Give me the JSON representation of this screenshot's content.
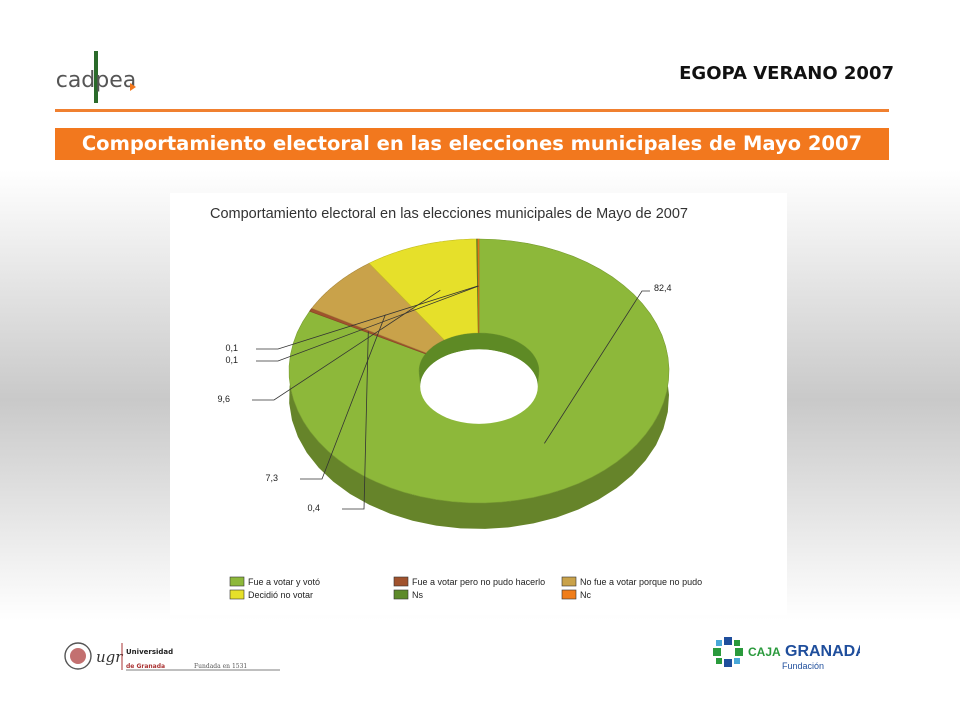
{
  "header": {
    "logo_left_text": "cadpea",
    "survey_label": "EGOPA VERANO 2007"
  },
  "banner": {
    "title": "Comportamiento electoral en las elecciones municipales de Mayo 2007"
  },
  "chart_data": {
    "type": "pie",
    "style": "3d-donut",
    "title": "Comportamiento electoral en las elecciones municipales de Mayo de 2007",
    "slices": [
      {
        "label": "Fue a votar y votó",
        "value": 82.4,
        "value_label": "82,4",
        "color": "#8db83a"
      },
      {
        "label": "Fue a votar pero no pudo hacerlo",
        "value": 0.4,
        "value_label": "0,4",
        "color": "#a0522d"
      },
      {
        "label": "No fue a votar porque no pudo",
        "value": 7.3,
        "value_label": "7,3",
        "color": "#c9a24a"
      },
      {
        "label": "Decidió no votar",
        "value": 9.6,
        "value_label": "9,6",
        "color": "#e6e02a"
      },
      {
        "label": "Ns",
        "value": 0.1,
        "value_label": "0,1",
        "color": "#5d8a2a"
      },
      {
        "label": "Nc",
        "value": 0.1,
        "value_label": "0,1",
        "color": "#f07d1a"
      }
    ],
    "legend": {
      "placement": "bottom",
      "order": [
        "Fue a votar y votó",
        "Fue a votar pero no pudo hacerlo",
        "No fue a votar porque no pudo",
        "Decidió no votar",
        "Ns",
        "Nc"
      ]
    }
  },
  "footer": {
    "ugr_abbrev": "ugr",
    "ugr_name_line1": "Universidad",
    "ugr_name_line2": "de Granada",
    "ugr_founded": "Fundada en 1531",
    "caja_prefix": "CAJA",
    "caja_name": "GRANADA",
    "caja_sub": "Fundación"
  },
  "colors": {
    "accent_orange": "#f2781e",
    "caja_blue": "#1f4e9c",
    "caja_green": "#2a9a3c"
  }
}
